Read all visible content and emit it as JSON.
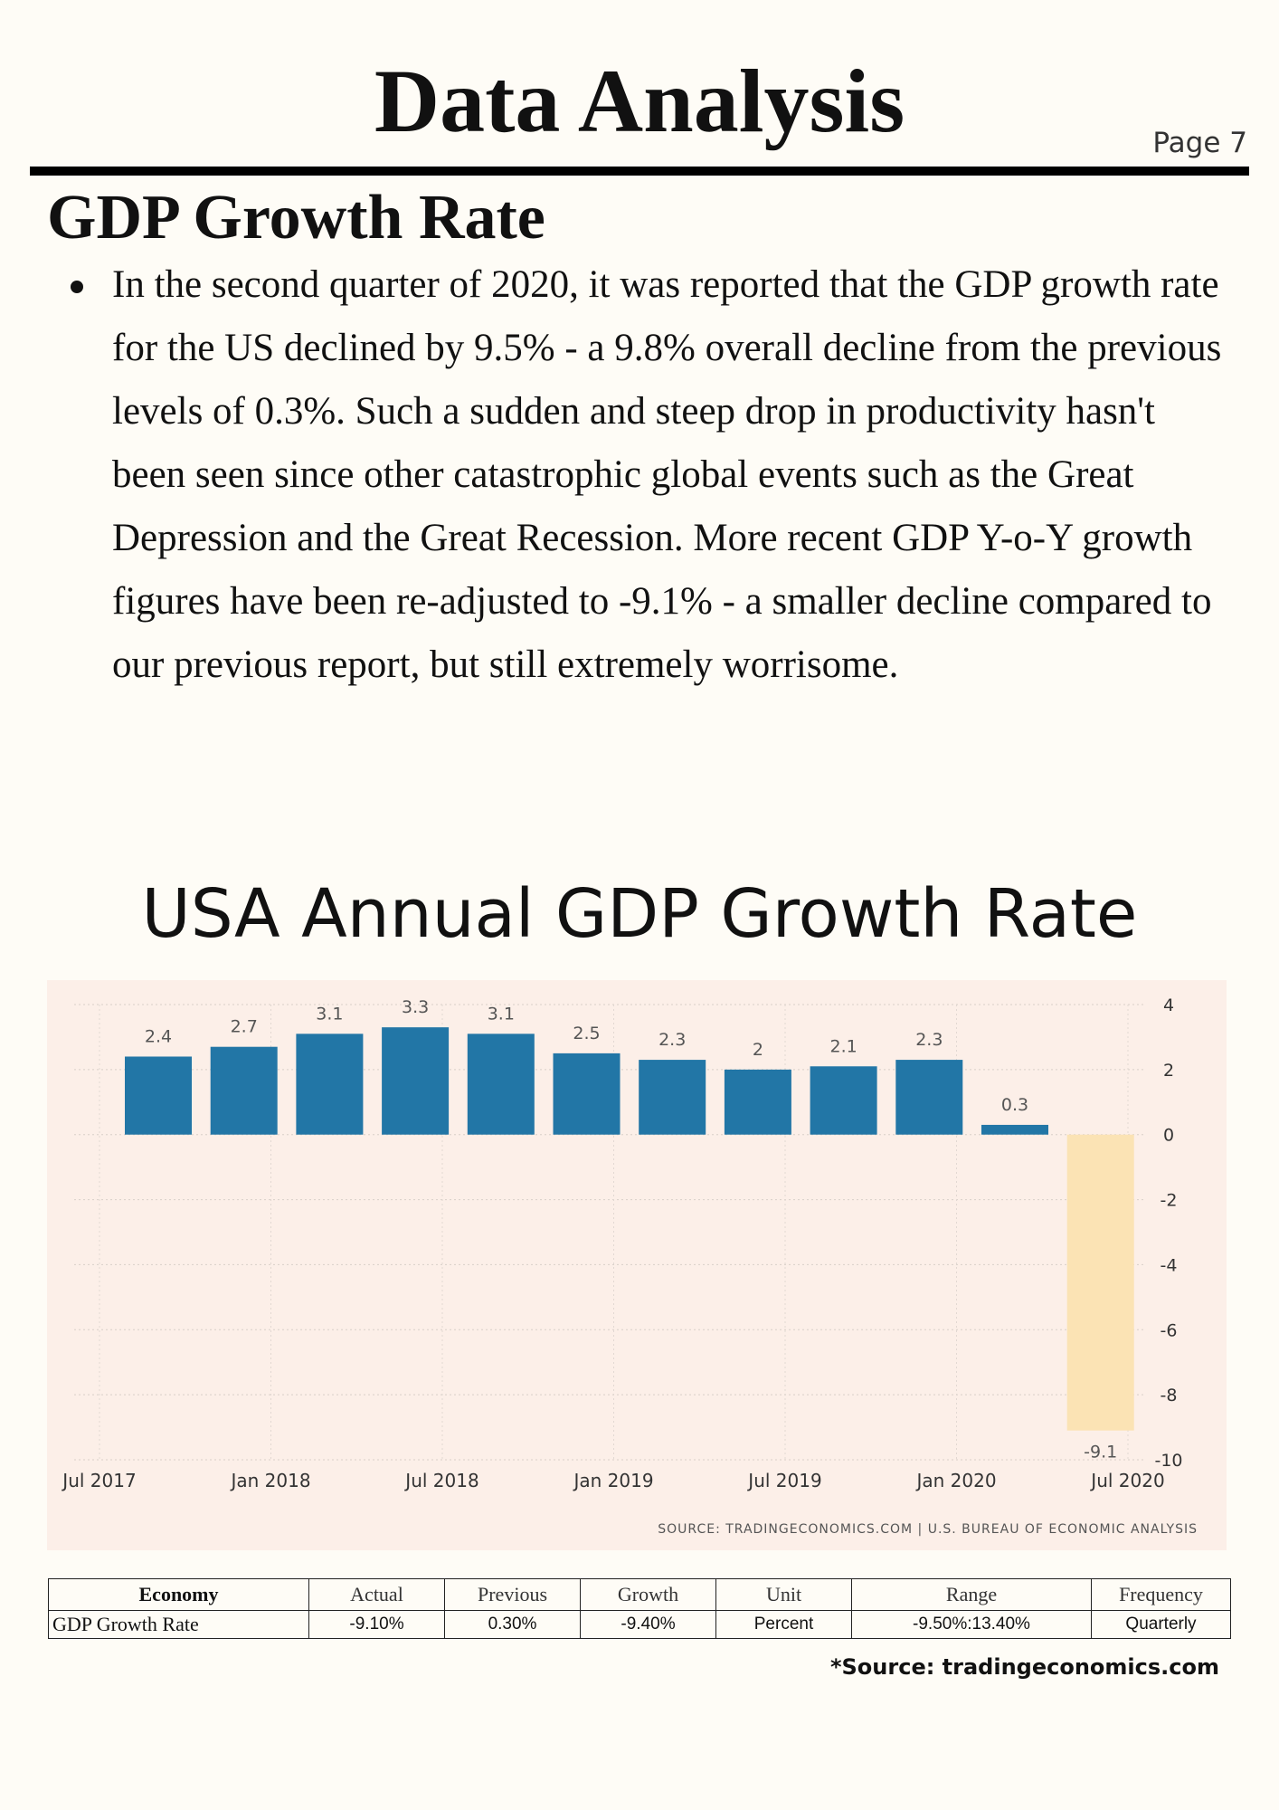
{
  "header": {
    "title": "Data Analysis",
    "page_label": "Page 7"
  },
  "section": {
    "title": "GDP Growth Rate",
    "bullets": [
      "In the second quarter of 2020, it was reported that the GDP growth rate for the US declined by 9.5% - a 9.8% overall decline from the previous levels of 0.3%. Such a sudden and steep drop in productivity hasn't been seen since other catastrophic global events such as the Great Depression and the Great Recession. More recent GDP Y-o-Y growth figures have been re-adjusted to -9.1% - a smaller decline compared to our previous report, but still extremely worrisome."
    ]
  },
  "chart_title": "USA Annual GDP Growth Rate",
  "chart_data": {
    "type": "bar",
    "title": "USA Annual GDP Growth Rate",
    "values": [
      2.4,
      2.7,
      3.1,
      3.3,
      3.1,
      2.5,
      2.3,
      2,
      2.1,
      2.3,
      0.3,
      -9.1
    ],
    "value_labels": [
      "2.4",
      "2.7",
      "3.1",
      "3.3",
      "3.1",
      "2.5",
      "2.3",
      "2",
      "2.1",
      "2.3",
      "0.3",
      "-9.1"
    ],
    "x_tick_labels": [
      "Jul 2017",
      "Jan 2018",
      "Jul 2018",
      "Jan 2019",
      "Jul 2019",
      "Jan 2020",
      "Jul 2020"
    ],
    "y_ticks": [
      4,
      2,
      0,
      -2,
      -4,
      -6,
      -8,
      -10
    ],
    "ylim": [
      -10,
      4
    ],
    "grid": true,
    "y_axis_side": "right",
    "bar_color": "#2276a6",
    "highlight_color": "#fbe3b4",
    "highlight_index": 11,
    "source_line": "SOURCE: TRADINGECONOMICS.COM | U.S. BUREAU OF ECONOMIC ANALYSIS"
  },
  "table": {
    "headers": [
      "Economy",
      "Actual",
      "Previous",
      "Growth",
      "Unit",
      "Range",
      "Frequency"
    ],
    "rows": [
      [
        "GDP Growth Rate",
        "-9.10%",
        "0.30%",
        "-9.40%",
        "Percent",
        "-9.50%:13.40%",
        "Quarterly"
      ]
    ]
  },
  "source_note": "*Source: tradingeconomics.com"
}
